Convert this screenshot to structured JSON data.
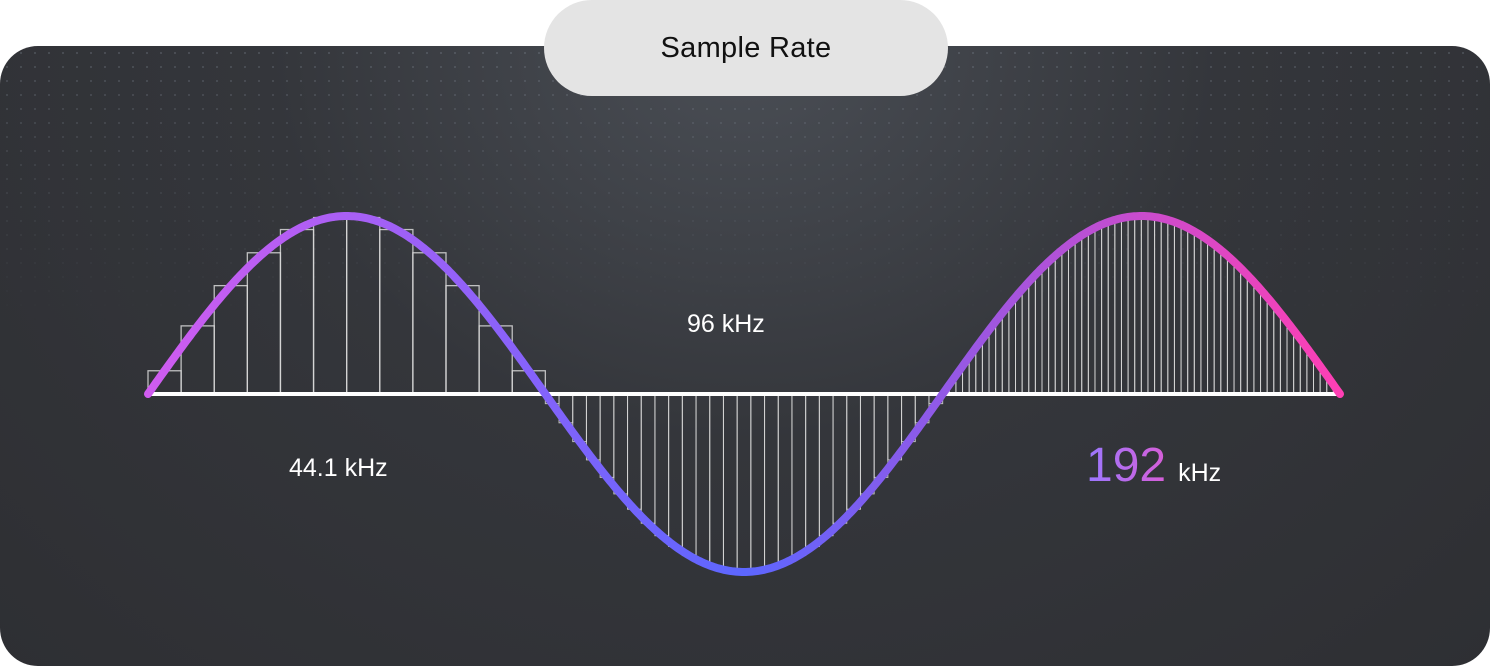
{
  "title": "Sample Rate",
  "labels": {
    "rate_441": "44.1 kHz",
    "rate_96": "96 kHz",
    "rate_192_value": "192",
    "rate_192_unit": "kHz"
  },
  "colors": {
    "wave_start": "#d05cf0",
    "wave_mid": "#5c66ff",
    "wave_end": "#ff3fb4",
    "background": "#313236",
    "pill": "#e4e4e4",
    "axis": "#ffffff",
    "sample_stroke": "#d8d8d8",
    "highlight_start": "#9a78ff",
    "highlight_end": "#d65ed8"
  },
  "segments": [
    {
      "rate": "44.1 kHz",
      "sample_count": 12
    },
    {
      "rate": "96 kHz",
      "sample_count": 29
    },
    {
      "rate": "192 kHz",
      "sample_count": 60
    }
  ]
}
